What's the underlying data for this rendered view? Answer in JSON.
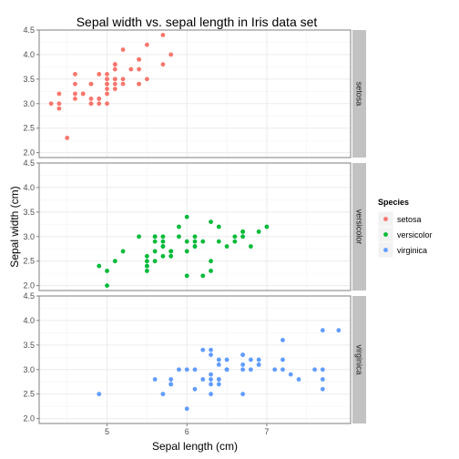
{
  "chart_data": {
    "type": "scatter",
    "title": "Sepal width vs. sepal length in Iris data set",
    "xlabel": "Sepal length (cm)",
    "ylabel": "Sepal width (cm)",
    "xlim": [
      4.15,
      8.05
    ],
    "ylim": [
      1.9,
      4.5
    ],
    "x_ticks": [
      5,
      6,
      7
    ],
    "y_ticks": [
      2.0,
      2.5,
      3.0,
      3.5,
      4.0,
      4.5
    ],
    "x_tick_labels": [
      "5",
      "6",
      "7"
    ],
    "y_tick_labels": [
      "2.0",
      "2.5",
      "3.0",
      "3.5",
      "4.0",
      "4.5"
    ],
    "grid": true,
    "legend_position": "right",
    "legend_title": "Species",
    "panels": [
      {
        "strip_label": "setosa",
        "color": "#F8766D",
        "points": [
          [
            5.1,
            3.5
          ],
          [
            4.9,
            3.0
          ],
          [
            4.7,
            3.2
          ],
          [
            4.6,
            3.1
          ],
          [
            5.0,
            3.6
          ],
          [
            5.4,
            3.9
          ],
          [
            4.6,
            3.4
          ],
          [
            5.0,
            3.4
          ],
          [
            4.4,
            2.9
          ],
          [
            4.9,
            3.1
          ],
          [
            5.4,
            3.7
          ],
          [
            4.8,
            3.4
          ],
          [
            4.8,
            3.0
          ],
          [
            4.3,
            3.0
          ],
          [
            5.8,
            4.0
          ],
          [
            5.7,
            4.4
          ],
          [
            5.4,
            3.9
          ],
          [
            5.1,
            3.5
          ],
          [
            5.7,
            3.8
          ],
          [
            5.1,
            3.8
          ],
          [
            5.4,
            3.4
          ],
          [
            5.1,
            3.7
          ],
          [
            4.6,
            3.6
          ],
          [
            5.1,
            3.3
          ],
          [
            4.8,
            3.4
          ],
          [
            5.0,
            3.0
          ],
          [
            5.0,
            3.4
          ],
          [
            5.2,
            3.5
          ],
          [
            5.2,
            3.4
          ],
          [
            4.7,
            3.2
          ],
          [
            4.8,
            3.1
          ],
          [
            5.4,
            3.4
          ],
          [
            5.2,
            4.1
          ],
          [
            5.5,
            4.2
          ],
          [
            4.9,
            3.1
          ],
          [
            5.0,
            3.2
          ],
          [
            5.5,
            3.5
          ],
          [
            4.9,
            3.6
          ],
          [
            4.4,
            3.0
          ],
          [
            5.1,
            3.4
          ],
          [
            5.0,
            3.5
          ],
          [
            4.5,
            2.3
          ],
          [
            4.4,
            3.2
          ],
          [
            5.0,
            3.5
          ],
          [
            5.1,
            3.8
          ],
          [
            4.8,
            3.0
          ],
          [
            5.1,
            3.8
          ],
          [
            4.6,
            3.2
          ],
          [
            5.3,
            3.7
          ],
          [
            5.0,
            3.3
          ]
        ]
      },
      {
        "strip_label": "versicolor",
        "color": "#00BA38",
        "points": [
          [
            7.0,
            3.2
          ],
          [
            6.4,
            3.2
          ],
          [
            6.9,
            3.1
          ],
          [
            5.5,
            2.3
          ],
          [
            6.5,
            2.8
          ],
          [
            5.7,
            2.8
          ],
          [
            6.3,
            3.3
          ],
          [
            4.9,
            2.4
          ],
          [
            6.6,
            2.9
          ],
          [
            5.2,
            2.7
          ],
          [
            5.0,
            2.0
          ],
          [
            5.9,
            3.0
          ],
          [
            6.0,
            2.2
          ],
          [
            6.1,
            2.9
          ],
          [
            5.6,
            2.9
          ],
          [
            6.7,
            3.1
          ],
          [
            5.6,
            3.0
          ],
          [
            5.8,
            2.7
          ],
          [
            6.2,
            2.2
          ],
          [
            5.6,
            2.5
          ],
          [
            5.9,
            3.2
          ],
          [
            6.1,
            2.8
          ],
          [
            6.3,
            2.5
          ],
          [
            6.1,
            2.8
          ],
          [
            6.4,
            2.9
          ],
          [
            6.6,
            3.0
          ],
          [
            6.8,
            2.8
          ],
          [
            6.7,
            3.0
          ],
          [
            6.0,
            2.9
          ],
          [
            5.7,
            2.6
          ],
          [
            5.5,
            2.4
          ],
          [
            5.5,
            2.4
          ],
          [
            5.8,
            2.7
          ],
          [
            6.0,
            2.7
          ],
          [
            5.4,
            3.0
          ],
          [
            6.0,
            3.4
          ],
          [
            6.7,
            3.1
          ],
          [
            6.3,
            2.3
          ],
          [
            5.6,
            3.0
          ],
          [
            5.5,
            2.5
          ],
          [
            5.5,
            2.6
          ],
          [
            6.1,
            3.0
          ],
          [
            5.8,
            2.6
          ],
          [
            5.0,
            2.3
          ],
          [
            5.6,
            2.7
          ],
          [
            5.7,
            3.0
          ],
          [
            5.7,
            2.9
          ],
          [
            6.2,
            2.9
          ],
          [
            5.1,
            2.5
          ],
          [
            5.7,
            2.8
          ]
        ]
      },
      {
        "strip_label": "virginica",
        "color": "#619CFF",
        "points": [
          [
            6.3,
            3.3
          ],
          [
            5.8,
            2.7
          ],
          [
            7.1,
            3.0
          ],
          [
            6.3,
            2.9
          ],
          [
            6.5,
            3.0
          ],
          [
            7.6,
            3.0
          ],
          [
            4.9,
            2.5
          ],
          [
            7.3,
            2.9
          ],
          [
            6.7,
            2.5
          ],
          [
            7.2,
            3.6
          ],
          [
            6.5,
            3.2
          ],
          [
            6.4,
            2.7
          ],
          [
            6.8,
            3.0
          ],
          [
            5.7,
            2.5
          ],
          [
            5.8,
            2.8
          ],
          [
            6.4,
            3.2
          ],
          [
            6.5,
            3.0
          ],
          [
            7.7,
            3.8
          ],
          [
            7.7,
            2.6
          ],
          [
            6.0,
            2.2
          ],
          [
            6.9,
            3.2
          ],
          [
            5.6,
            2.8
          ],
          [
            7.7,
            2.8
          ],
          [
            6.3,
            2.7
          ],
          [
            6.7,
            3.3
          ],
          [
            7.2,
            3.2
          ],
          [
            6.2,
            2.8
          ],
          [
            6.1,
            3.0
          ],
          [
            6.4,
            2.8
          ],
          [
            7.2,
            3.0
          ],
          [
            7.4,
            2.8
          ],
          [
            7.9,
            3.8
          ],
          [
            6.4,
            2.8
          ],
          [
            6.3,
            2.8
          ],
          [
            6.1,
            2.6
          ],
          [
            7.7,
            3.0
          ],
          [
            6.3,
            3.4
          ],
          [
            6.4,
            3.1
          ],
          [
            6.0,
            3.0
          ],
          [
            6.9,
            3.1
          ],
          [
            6.7,
            3.1
          ],
          [
            6.9,
            3.1
          ],
          [
            5.8,
            2.7
          ],
          [
            6.8,
            3.2
          ],
          [
            6.7,
            3.3
          ],
          [
            6.7,
            3.0
          ],
          [
            6.3,
            2.5
          ],
          [
            6.5,
            3.0
          ],
          [
            6.2,
            3.4
          ],
          [
            5.9,
            3.0
          ]
        ]
      }
    ],
    "legend": [
      {
        "label": "setosa",
        "color": "#F8766D"
      },
      {
        "label": "versicolor",
        "color": "#00BA38"
      },
      {
        "label": "virginica",
        "color": "#619CFF"
      }
    ]
  }
}
